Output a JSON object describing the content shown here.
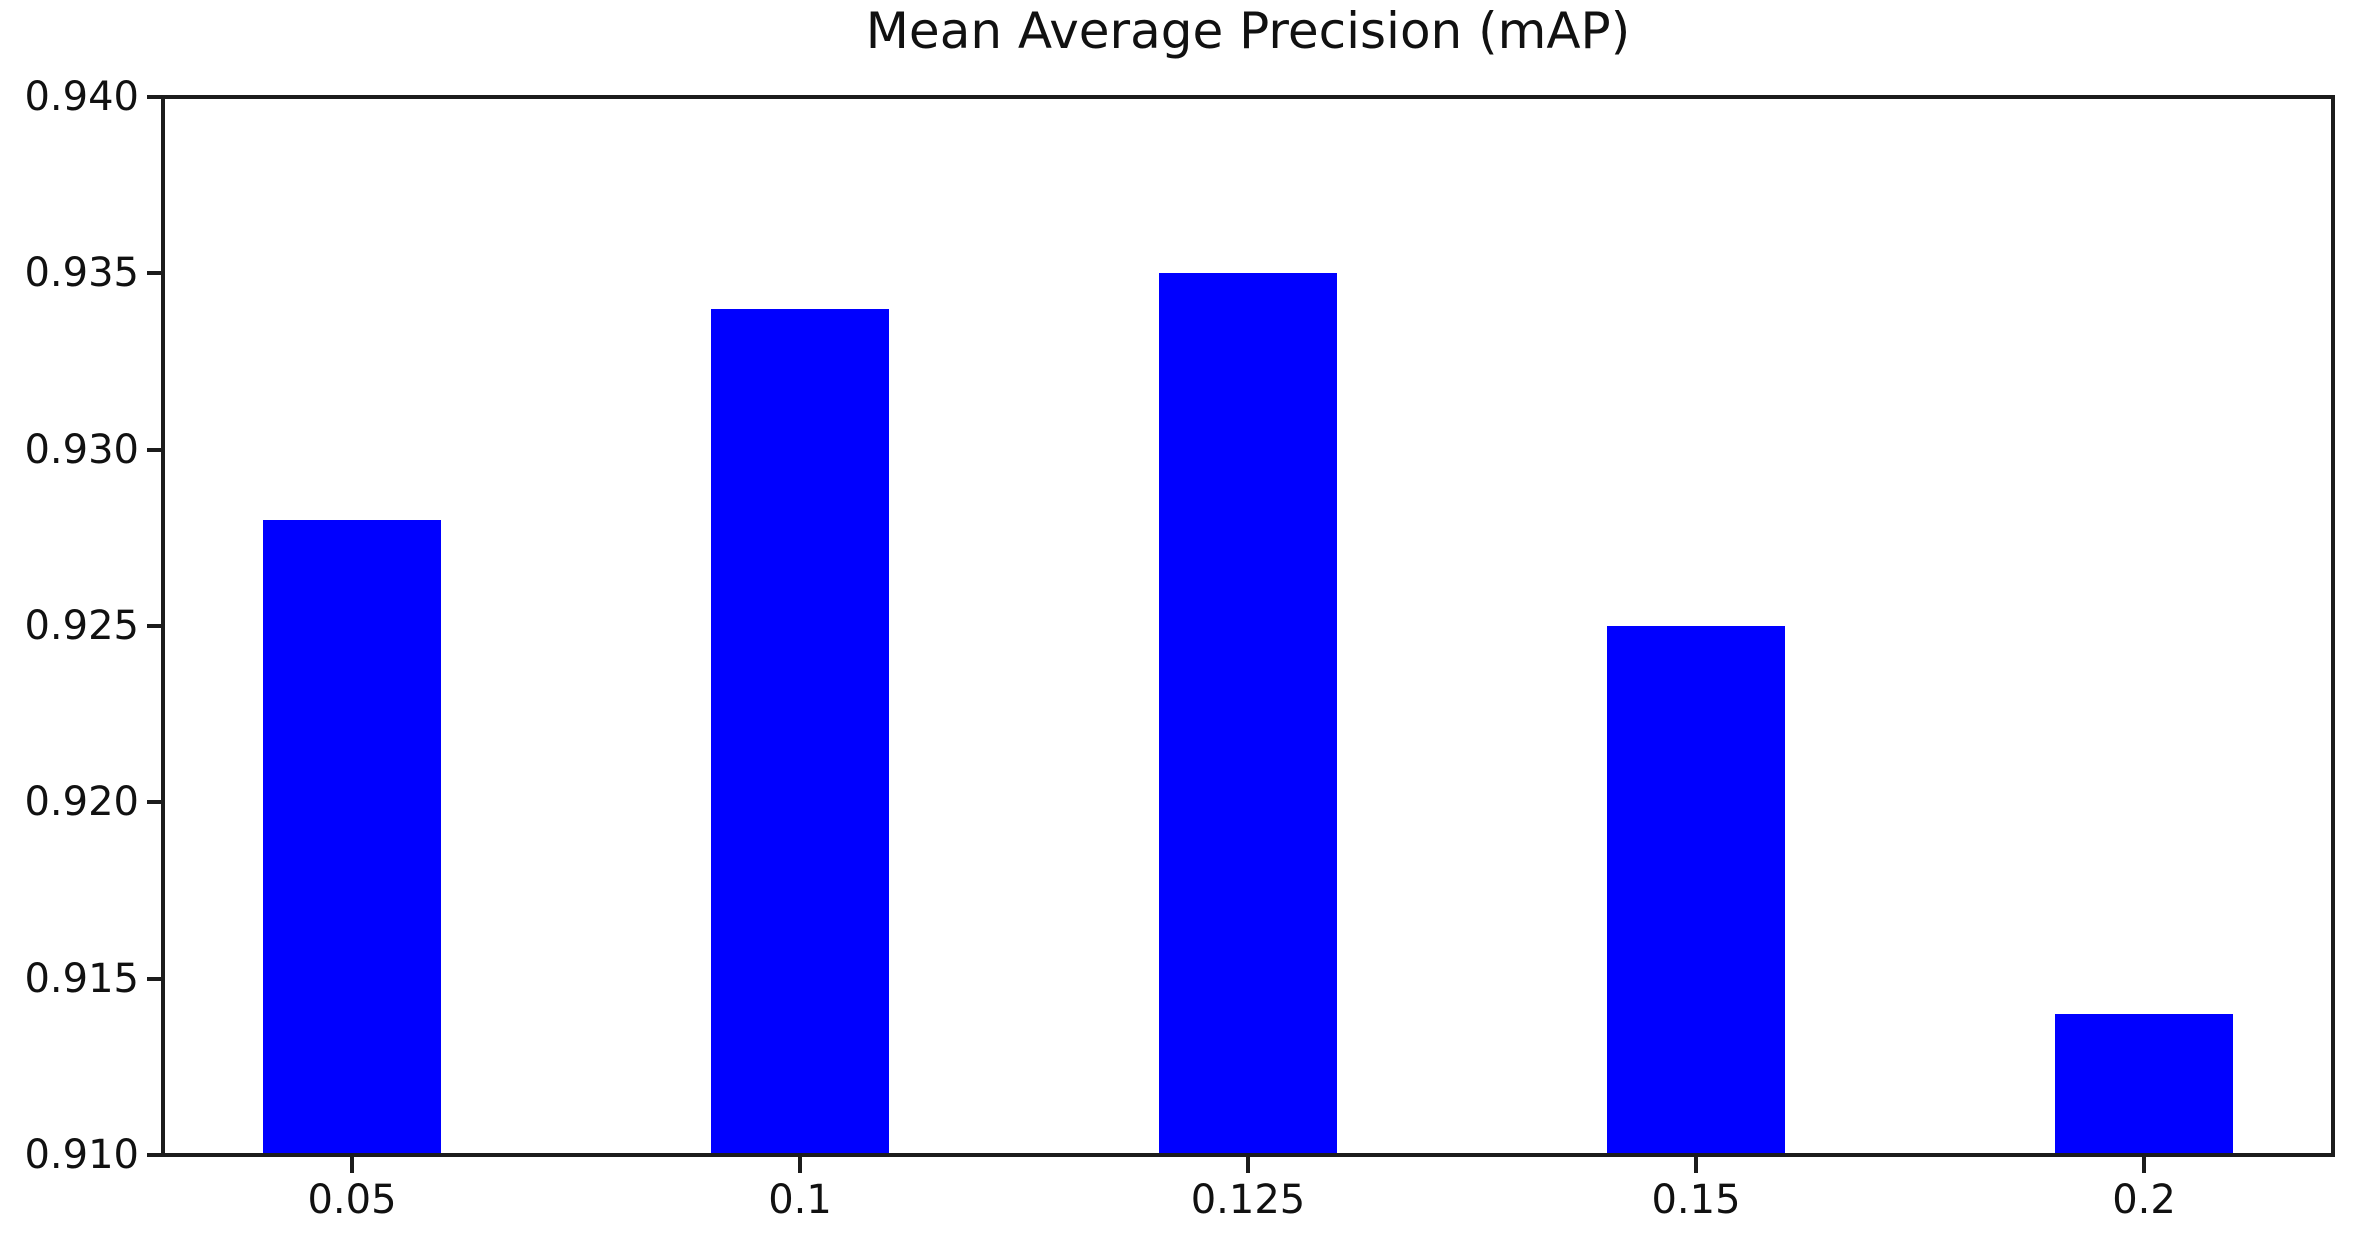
{
  "chart_data": {
    "type": "bar",
    "title": "Mean Average Precision (mAP)",
    "categories": [
      "0.05",
      "0.1",
      "0.125",
      "0.15",
      "0.2"
    ],
    "values": [
      0.928,
      0.934,
      0.935,
      0.925,
      0.914
    ],
    "xlabel": "",
    "ylabel": "",
    "ylim": [
      0.91,
      0.94
    ],
    "yticks": [
      0.91,
      0.915,
      0.92,
      0.925,
      0.93,
      0.935,
      0.94
    ],
    "ytick_labels": [
      "0.910",
      "0.915",
      "0.920",
      "0.925",
      "0.930",
      "0.935",
      "0.940"
    ],
    "bar_color": "#0000ff",
    "axis_color": "#1c1c1c",
    "text_color": "#111111",
    "background_color": "#ffffff",
    "grid": false,
    "legend": "none"
  }
}
